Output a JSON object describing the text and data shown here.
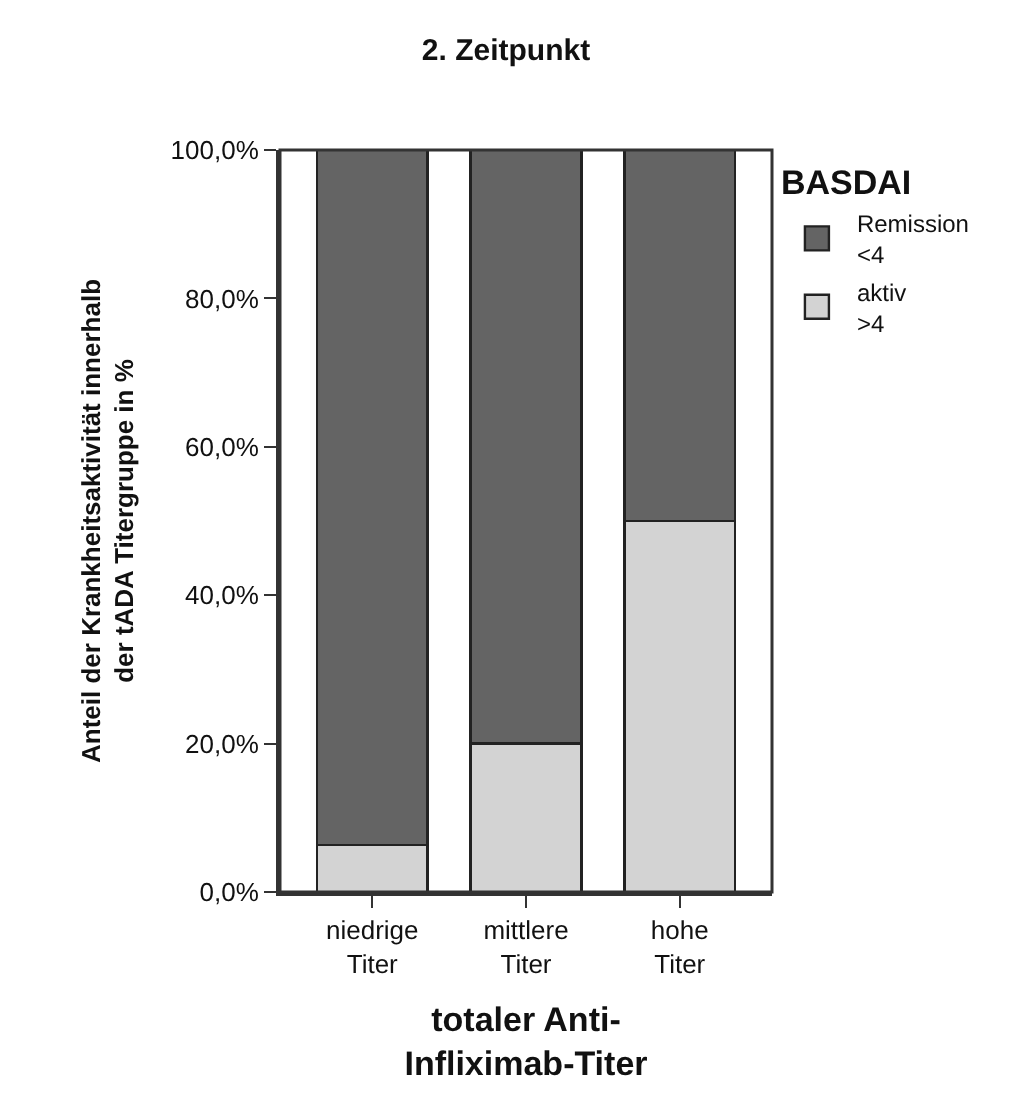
{
  "chart_data": {
    "type": "bar",
    "title": "2. Zeitpunkt",
    "xlabel": "totaler Anti-\nInfliximab-Titer",
    "ylabel": "Anteil der Krankheitsaktivität innerhalb\nder tADA Titergruppe in %",
    "legend_title": "BASDAI",
    "categories": [
      "niedrige\nTiter",
      "mittlere\nTiter",
      "hohe\nTiter"
    ],
    "stacked": true,
    "series": [
      {
        "name": "aktiv\n>4",
        "color": "#d3d3d3",
        "values": [
          6.3,
          20,
          50
        ]
      },
      {
        "name": "Remission\n<4",
        "color": "#646464",
        "values": [
          93.7,
          80,
          50
        ]
      }
    ],
    "ylim": [
      0,
      100
    ],
    "yticks": [
      {
        "value": 0,
        "label": "0,0%"
      },
      {
        "value": 20,
        "label": "20,0%"
      },
      {
        "value": 40,
        "label": "40,0%"
      },
      {
        "value": 60,
        "label": "60,0%"
      },
      {
        "value": 80,
        "label": "80,0%"
      },
      {
        "value": 100,
        "label": "100,0%"
      }
    ],
    "legend": "right"
  }
}
